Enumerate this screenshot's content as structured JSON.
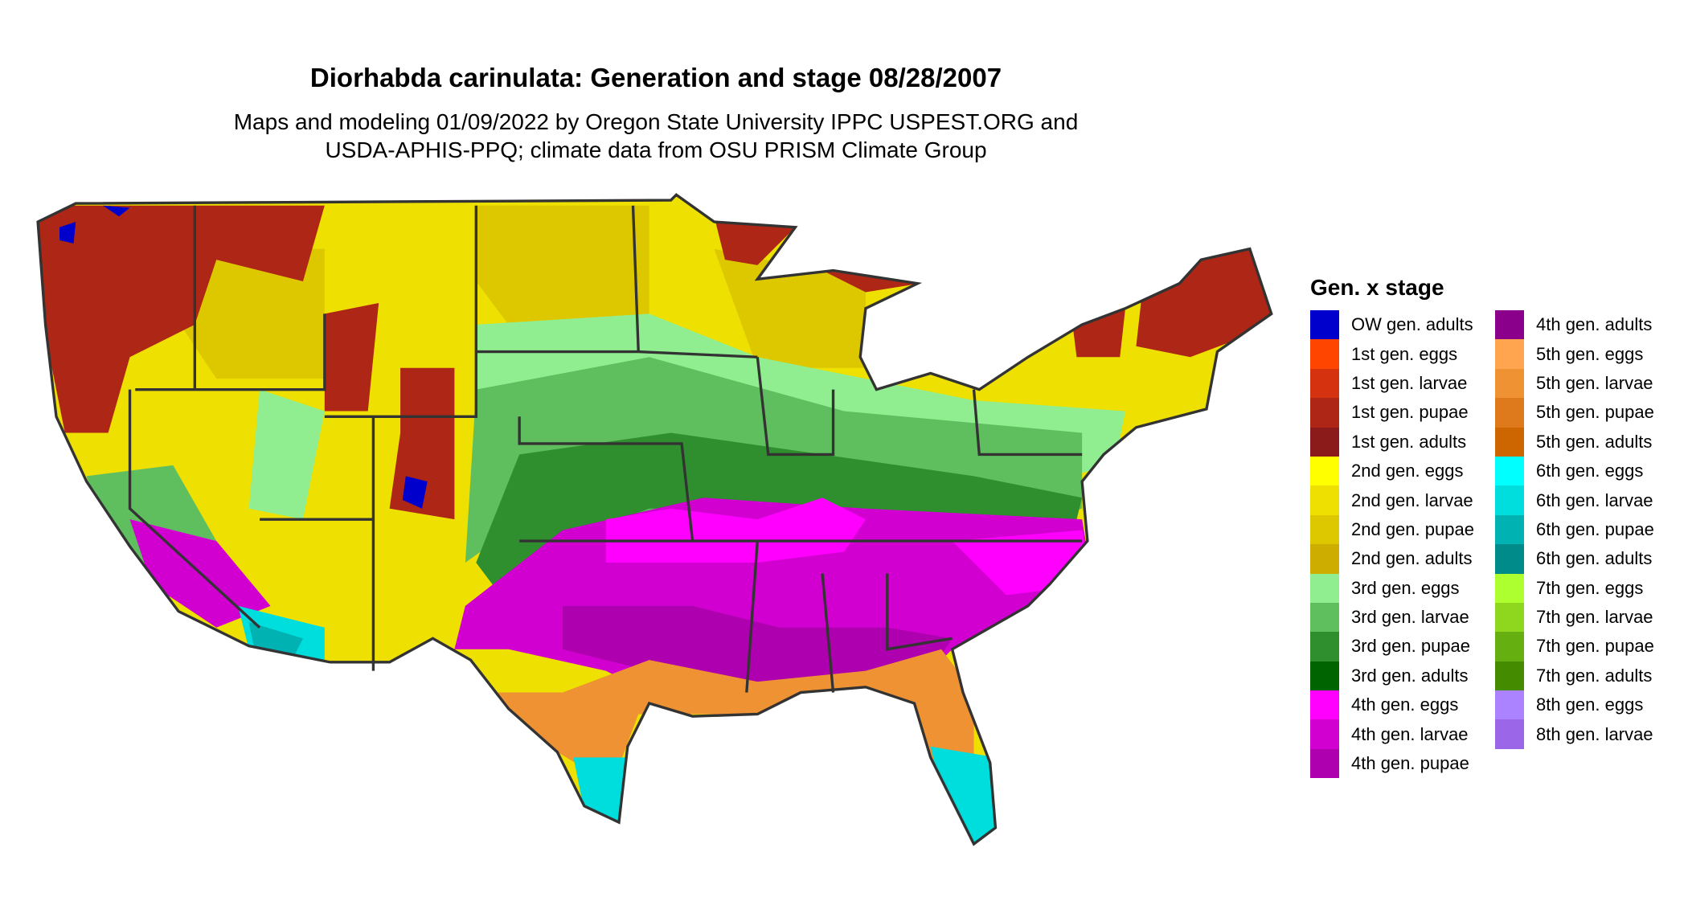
{
  "title": "Diorhabda carinulata: Generation and stage 08/28/2007",
  "subtitle": {
    "line1": "Maps and modeling 01/09/2022 by Oregon State University IPPC USPEST.ORG and",
    "line2": "USDA-APHIS-PPQ; climate data from OSU PRISM Climate Group"
  },
  "legend": {
    "title": "Gen. x stage",
    "columns": [
      [
        {
          "label": "OW gen. adults",
          "color": "#0000CD"
        },
        {
          "label": "1st gen. eggs",
          "color": "#FF4500"
        },
        {
          "label": "1st gen. larvae",
          "color": "#D5330F"
        },
        {
          "label": "1st gen. pupae",
          "color": "#AE2615"
        },
        {
          "label": "1st gen. adults",
          "color": "#8B1A1A"
        },
        {
          "label": "2nd gen. eggs",
          "color": "#FFFF00"
        },
        {
          "label": "2nd gen. larvae",
          "color": "#EEE000"
        },
        {
          "label": "2nd gen. pupae",
          "color": "#DDC800"
        },
        {
          "label": "2nd gen. adults",
          "color": "#CDAD00"
        },
        {
          "label": "3rd gen. eggs",
          "color": "#90EE90"
        },
        {
          "label": "3rd gen. larvae",
          "color": "#5FBF5F"
        },
        {
          "label": "3rd gen. pupae",
          "color": "#2F8F2F"
        },
        {
          "label": "3rd gen. adults",
          "color": "#006400"
        },
        {
          "label": "4th gen. eggs",
          "color": "#FF00FF"
        },
        {
          "label": "4th gen. larvae",
          "color": "#D100D1"
        },
        {
          "label": "4th gen. pupae",
          "color": "#AE00AE"
        }
      ],
      [
        {
          "label": "4th gen. adults",
          "color": "#8B008B"
        },
        {
          "label": "5th gen. eggs",
          "color": "#FFA54F"
        },
        {
          "label": "5th gen. larvae",
          "color": "#EE9233"
        },
        {
          "label": "5th gen. pupae",
          "color": "#DE7A1C"
        },
        {
          "label": "5th gen. adults",
          "color": "#CD6600"
        },
        {
          "label": "6th gen. eggs",
          "color": "#00FFFF"
        },
        {
          "label": "6th gen. larvae",
          "color": "#00DDDD"
        },
        {
          "label": "6th gen. pupae",
          "color": "#00B2B2"
        },
        {
          "label": "6th gen. adults",
          "color": "#008B8B"
        },
        {
          "label": "7th gen. eggs",
          "color": "#ADFF2F"
        },
        {
          "label": "7th gen. larvae",
          "color": "#8FD61F"
        },
        {
          "label": "7th gen. pupae",
          "color": "#66AF10"
        },
        {
          "label": "7th gen. adults",
          "color": "#458B00"
        },
        {
          "label": "8th gen. eggs",
          "color": "#AB82FF"
        },
        {
          "label": "8th gen. larvae",
          "color": "#9B66E8"
        }
      ]
    ]
  }
}
